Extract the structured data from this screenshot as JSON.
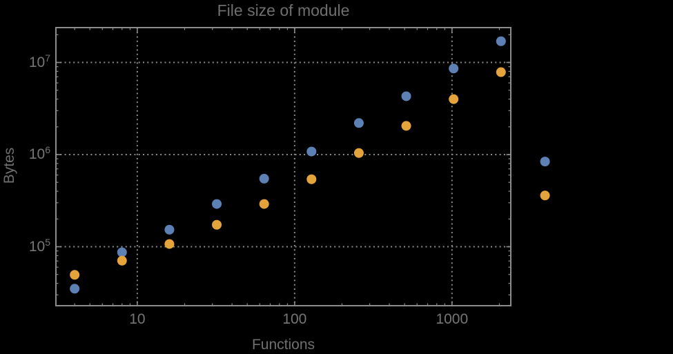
{
  "chart_data": {
    "type": "scatter",
    "title": "File size of module",
    "xlabel": "Functions",
    "ylabel": "Bytes",
    "xscale": "log",
    "yscale": "log",
    "xlim": [
      3.04,
      2364
    ],
    "ylim": [
      22900,
      23900000
    ],
    "grid": "dotted-major-decades",
    "legend": "none",
    "x_ticks": [
      {
        "value": 10,
        "label": "10"
      },
      {
        "value": 100,
        "label": "100"
      },
      {
        "value": 1000,
        "label": "1000"
      }
    ],
    "y_ticks": [
      {
        "value": 100000,
        "base": "10",
        "exp": "5"
      },
      {
        "value": 1000000,
        "base": "10",
        "exp": "6"
      },
      {
        "value": 10000000,
        "base": "10",
        "exp": "7"
      }
    ],
    "series": [
      {
        "color": "#5e81b5",
        "points": [
          [
            4,
            35000
          ],
          [
            8,
            87000
          ],
          [
            16,
            153000
          ],
          [
            32,
            291000
          ],
          [
            64,
            548000
          ],
          [
            128,
            1080000
          ],
          [
            256,
            2200000
          ],
          [
            512,
            4300000
          ],
          [
            1024,
            8600000
          ],
          [
            2048,
            17000000
          ],
          [
            3900,
            840000
          ]
        ]
      },
      {
        "color": "#e5a33b",
        "points": [
          [
            4,
            49500
          ],
          [
            8,
            70500
          ],
          [
            16,
            107000
          ],
          [
            32,
            173000
          ],
          [
            64,
            291000
          ],
          [
            128,
            540000
          ],
          [
            256,
            1040000
          ],
          [
            512,
            2050000
          ],
          [
            1024,
            4000000
          ],
          [
            2048,
            7850000
          ],
          [
            3900,
            360000
          ]
        ]
      }
    ]
  },
  "colors": {
    "background": "#000000",
    "frame": "#8c8c8c",
    "grid": "#8c8c8c",
    "tick_text": "#767676",
    "label_text": "#6f6f6f"
  }
}
